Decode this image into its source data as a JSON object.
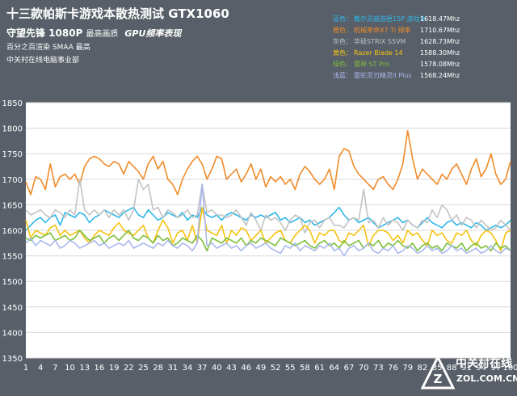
{
  "header": {
    "title": "十三款帕斯卡游戏本散热测试 GTX1060",
    "subtitle_main": "守望先锋 1080P",
    "subtitle_quality": "最高画质",
    "subtitle_italic": "GPU频率表现",
    "note1": "百分之百渲染 SMAA 最高",
    "note2": "中关村在线电脑事业部"
  },
  "legend": [
    {
      "color_label": "蓝色：",
      "name": "戴尔灵越游匣15P 游戏本",
      "value": "1618.47Mhz"
    },
    {
      "color_label": "橙色：",
      "name": "机械革命X7 Ti 频率",
      "value": "1710.67Mhz"
    },
    {
      "color_label": "灰色：",
      "name": "华硕STRIX S5VM",
      "value": "1628.73Mhz"
    },
    {
      "color_label": "黄色：",
      "name": "Razer Blade 14",
      "value": "1588.30Mhz"
    },
    {
      "color_label": "绿色：",
      "name": "雷神 ST Pro",
      "value": "1578.08Mhz"
    },
    {
      "color_label": "浅蓝：",
      "name": "雷蛇灵刃精灵II Plus",
      "value": "1568.24Mhz"
    }
  ],
  "watermark": {
    "cn": "中关村在线",
    "en": "ZOL.COM.CN"
  },
  "chart_data": {
    "type": "line",
    "title": "十三款帕斯卡游戏本散热测试 GTX1060",
    "ylim": [
      1350,
      1850
    ],
    "yticks": [
      1350,
      1400,
      1450,
      1500,
      1550,
      1600,
      1650,
      1700,
      1750,
      1800,
      1850
    ],
    "xlim": [
      1,
      100
    ],
    "xticks": [
      1,
      4,
      7,
      10,
      13,
      16,
      19,
      22,
      25,
      28,
      31,
      34,
      37,
      40,
      43,
      46,
      49,
      52,
      55,
      58,
      61,
      64,
      67,
      70,
      73,
      76,
      79,
      82,
      85,
      88,
      91,
      94,
      97,
      100
    ],
    "grid": true,
    "legend_position": "top-right",
    "series": [
      {
        "name": "戴尔灵越游匣15P 游戏本",
        "color": "#2fb6e8",
        "values": [
          1600,
          1610,
          1620,
          1625,
          1615,
          1625,
          1630,
          1610,
          1635,
          1630,
          1625,
          1635,
          1630,
          1615,
          1625,
          1630,
          1640,
          1635,
          1630,
          1625,
          1635,
          1640,
          1645,
          1630,
          1625,
          1640,
          1630,
          1620,
          1625,
          1635,
          1630,
          1625,
          1635,
          1620,
          1630,
          1625,
          1645,
          1630,
          1625,
          1630,
          1620,
          1630,
          1635,
          1630,
          1625,
          1620,
          1630,
          1625,
          1630,
          1625,
          1630,
          1635,
          1620,
          1625,
          1615,
          1620,
          1625,
          1615,
          1620,
          1610,
          1615,
          1620,
          1625,
          1635,
          1645,
          1630,
          1620,
          1625,
          1615,
          1620,
          1625,
          1615,
          1605,
          1610,
          1615,
          1620,
          1625,
          1615,
          1620,
          1610,
          1605,
          1615,
          1625,
          1615,
          1610,
          1605,
          1615,
          1620,
          1610,
          1615,
          1610,
          1605,
          1615,
          1610,
          1600,
          1605,
          1610,
          1605,
          1610,
          1620
        ]
      },
      {
        "name": "机械革命X7 Ti 频率",
        "color": "#f08a28",
        "values": [
          1695,
          1670,
          1705,
          1700,
          1680,
          1730,
          1685,
          1705,
          1710,
          1700,
          1710,
          1690,
          1725,
          1740,
          1745,
          1740,
          1730,
          1725,
          1735,
          1730,
          1710,
          1735,
          1725,
          1715,
          1700,
          1730,
          1745,
          1720,
          1735,
          1700,
          1690,
          1670,
          1700,
          1720,
          1735,
          1745,
          1730,
          1700,
          1720,
          1745,
          1740,
          1700,
          1710,
          1720,
          1695,
          1710,
          1730,
          1700,
          1720,
          1685,
          1705,
          1695,
          1705,
          1690,
          1700,
          1680,
          1710,
          1725,
          1715,
          1700,
          1690,
          1700,
          1720,
          1680,
          1745,
          1760,
          1755,
          1725,
          1710,
          1700,
          1690,
          1680,
          1700,
          1705,
          1690,
          1680,
          1700,
          1730,
          1795,
          1740,
          1700,
          1720,
          1710,
          1700,
          1690,
          1710,
          1700,
          1720,
          1730,
          1710,
          1690,
          1720,
          1740,
          1705,
          1720,
          1750,
          1710,
          1690,
          1700,
          1735
        ]
      },
      {
        "name": "华硕STRIX S5VM",
        "color": "#c3c3c3",
        "values": [
          1640,
          1630,
          1635,
          1640,
          1630,
          1625,
          1640,
          1635,
          1625,
          1640,
          1630,
          1700,
          1640,
          1630,
          1640,
          1630,
          1640,
          1625,
          1640,
          1630,
          1640,
          1620,
          1640,
          1700,
          1680,
          1690,
          1640,
          1645,
          1625,
          1640,
          1635,
          1625,
          1630,
          1640,
          1625,
          1630,
          1690,
          1635,
          1640,
          1630,
          1630,
          1625,
          1630,
          1640,
          1625,
          1610,
          1635,
          1620,
          1600,
          1630,
          1620,
          1625,
          1615,
          1600,
          1620,
          1630,
          1625,
          1595,
          1615,
          1620,
          1605,
          1620,
          1625,
          1610,
          1610,
          1605,
          1620,
          1625,
          1620,
          1680,
          1615,
          1620,
          1605,
          1625,
          1610,
          1620,
          1615,
          1600,
          1620,
          1610,
          1605,
          1620,
          1615,
          1640,
          1625,
          1650,
          1640,
          1620,
          1630,
          1610,
          1625,
          1620,
          1605,
          1620,
          1610,
          1600,
          1605,
          1620,
          1610,
          1600
        ]
      },
      {
        "name": "Razer Blade 14",
        "color": "#f5c211",
        "values": [
          1620,
          1585,
          1600,
          1595,
          1590,
          1605,
          1610,
          1590,
          1600,
          1590,
          1595,
          1600,
          1585,
          1575,
          1590,
          1600,
          1595,
          1590,
          1605,
          1615,
          1600,
          1595,
          1590,
          1600,
          1610,
          1585,
          1575,
          1600,
          1620,
          1605,
          1575,
          1595,
          1600,
          1580,
          1610,
          1575,
          1645,
          1600,
          1595,
          1590,
          1610,
          1575,
          1600,
          1590,
          1605,
          1600,
          1580,
          1590,
          1600,
          1575,
          1585,
          1595,
          1600,
          1580,
          1575,
          1590,
          1600,
          1610,
          1600,
          1575,
          1595,
          1590,
          1600,
          1600,
          1580,
          1575,
          1595,
          1590,
          1600,
          1610,
          1570,
          1590,
          1600,
          1600,
          1595,
          1580,
          1590,
          1575,
          1600,
          1590,
          1595,
          1580,
          1570,
          1600,
          1590,
          1595,
          1580,
          1575,
          1595,
          1590,
          1600,
          1580,
          1570,
          1590,
          1600,
          1595,
          1580,
          1560,
          1595,
          1600
        ]
      },
      {
        "name": "雷神 ST Pro",
        "color": "#7cbf3a",
        "values": [
          1585,
          1580,
          1590,
          1585,
          1590,
          1595,
          1580,
          1585,
          1590,
          1580,
          1585,
          1600,
          1590,
          1580,
          1585,
          1590,
          1575,
          1585,
          1590,
          1580,
          1590,
          1600,
          1585,
          1580,
          1590,
          1585,
          1575,
          1590,
          1580,
          1585,
          1570,
          1575,
          1585,
          1580,
          1575,
          1590,
          1580,
          1560,
          1585,
          1580,
          1575,
          1585,
          1580,
          1575,
          1585,
          1570,
          1580,
          1575,
          1585,
          1580,
          1575,
          1570,
          1585,
          1580,
          1575,
          1570,
          1575,
          1580,
          1570,
          1565,
          1575,
          1580,
          1570,
          1575,
          1565,
          1580,
          1570,
          1575,
          1580,
          1565,
          1575,
          1570,
          1580,
          1565,
          1575,
          1570,
          1580,
          1570,
          1565,
          1575,
          1560,
          1570,
          1575,
          1565,
          1570,
          1560,
          1575,
          1570,
          1565,
          1575,
          1560,
          1570,
          1575,
          1565,
          1570,
          1560,
          1575,
          1565,
          1570,
          1560
        ]
      },
      {
        "name": "雷蛇灵刃精灵II Plus",
        "color": "#aab8ee",
        "values": [
          1575,
          1585,
          1570,
          1580,
          1575,
          1570,
          1580,
          1565,
          1570,
          1580,
          1575,
          1565,
          1570,
          1575,
          1580,
          1570,
          1575,
          1565,
          1570,
          1575,
          1570,
          1580,
          1565,
          1570,
          1575,
          1570,
          1565,
          1575,
          1570,
          1580,
          1570,
          1565,
          1575,
          1570,
          1560,
          1575,
          1690,
          1570,
          1575,
          1565,
          1570,
          1575,
          1565,
          1570,
          1560,
          1570,
          1575,
          1565,
          1570,
          1575,
          1565,
          1560,
          1555,
          1570,
          1565,
          1575,
          1560,
          1570,
          1565,
          1560,
          1570,
          1565,
          1575,
          1560,
          1565,
          1550,
          1565,
          1570,
          1560,
          1565,
          1575,
          1560,
          1555,
          1565,
          1560,
          1570,
          1555,
          1560,
          1570,
          1565,
          1555,
          1560,
          1570,
          1560,
          1565,
          1555,
          1560,
          1570,
          1560,
          1565,
          1555,
          1560,
          1565,
          1555,
          1560,
          1570,
          1560,
          1555,
          1565,
          1560
        ]
      }
    ]
  }
}
